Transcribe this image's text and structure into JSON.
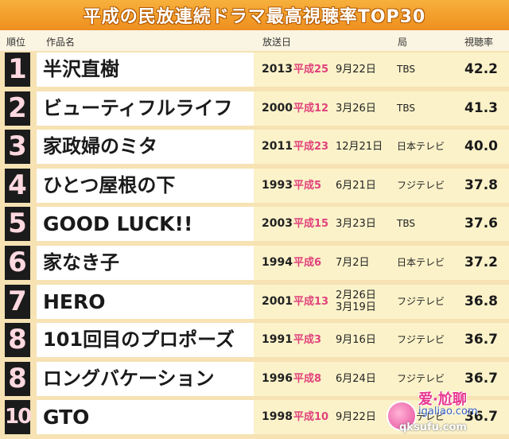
{
  "title": "平成の民放連続ドラマ最高視聴率TOP30",
  "headers": {
    "rank": "順位",
    "name": "作品名",
    "air_date": "放送日",
    "station": "局",
    "rating": "視聴率"
  },
  "rows": [
    {
      "rank": "1",
      "name": "半沢直樹",
      "year": "2013",
      "era": "平成25",
      "date": [
        "9月22日"
      ],
      "station": "TBS",
      "rating": "42.2"
    },
    {
      "rank": "2",
      "name": "ビューティフルライフ",
      "year": "2000",
      "era": "平成12",
      "date": [
        "3月26日"
      ],
      "station": "TBS",
      "rating": "41.3"
    },
    {
      "rank": "3",
      "name": "家政婦のミタ",
      "year": "2011",
      "era": "平成23",
      "date": [
        "12月21日"
      ],
      "station": "日本テレビ",
      "rating": "40.0"
    },
    {
      "rank": "4",
      "name": "ひとつ屋根の下",
      "year": "1993",
      "era": "平成5",
      "date": [
        "6月21日"
      ],
      "station": "フジテレビ",
      "rating": "37.8"
    },
    {
      "rank": "5",
      "name": "GOOD LUCK!!",
      "year": "2003",
      "era": "平成15",
      "date": [
        "3月23日"
      ],
      "station": "TBS",
      "rating": "37.6"
    },
    {
      "rank": "6",
      "name": "家なき子",
      "year": "1994",
      "era": "平成6",
      "date": [
        "7月2日"
      ],
      "station": "日本テレビ",
      "rating": "37.2"
    },
    {
      "rank": "7",
      "name": "HERO",
      "year": "2001",
      "era": "平成13",
      "date": [
        "2月26日",
        "3月19日"
      ],
      "station": "フジテレビ",
      "rating": "36.8"
    },
    {
      "rank": "8",
      "name": "101回目のプロポーズ",
      "year": "1991",
      "era": "平成3",
      "date": [
        "9月16日"
      ],
      "station": "フジテレビ",
      "rating": "36.7"
    },
    {
      "rank": "8",
      "name": "ロングバケーション",
      "year": "1996",
      "era": "平成8",
      "date": [
        "6月24日"
      ],
      "station": "フジテレビ",
      "rating": "36.7"
    },
    {
      "rank": "10",
      "name": "GTO",
      "year": "1998",
      "era": "平成10",
      "date": [
        "9月22日"
      ],
      "station": "フジテレビ",
      "rating": "36.7"
    }
  ],
  "watermark": {
    "line1": "爱·尬聊",
    "line2": "igaliao.com",
    "line3": "qksufu.com"
  },
  "colors": {
    "title_bg": "#f2a030",
    "rank_bg": "#1b1b1b",
    "rank_fg": "#ffd8e0",
    "era": "#e0427c",
    "info_bg": "#fbf2c9",
    "page_bg": "#f6e2b3"
  }
}
